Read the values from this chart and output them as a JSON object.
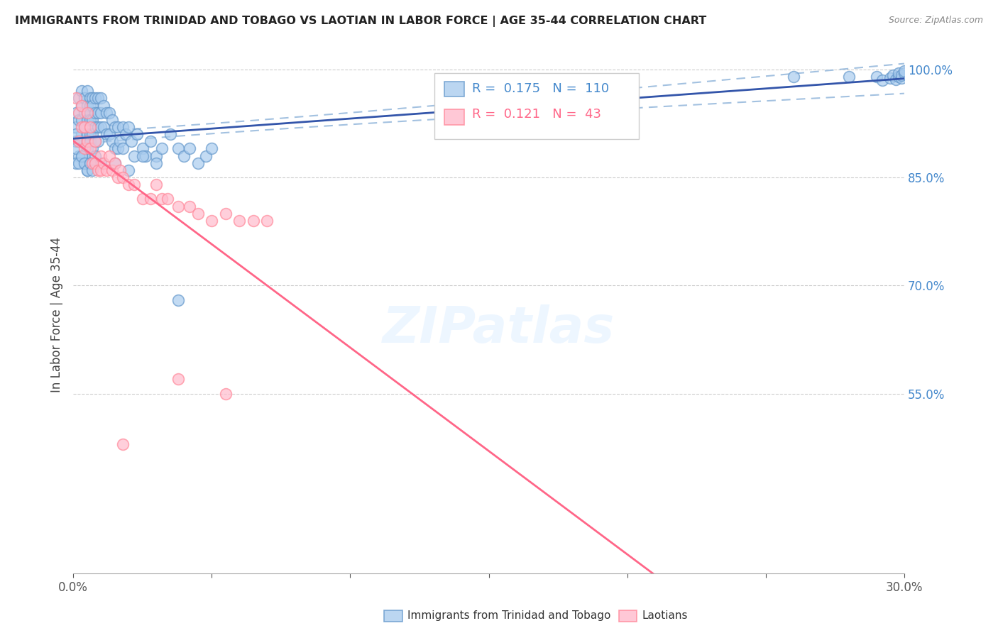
{
  "title": "IMMIGRANTS FROM TRINIDAD AND TOBAGO VS LAOTIAN IN LABOR FORCE | AGE 35-44 CORRELATION CHART",
  "source": "Source: ZipAtlas.com",
  "ylabel": "In Labor Force | Age 35-44",
  "xlim": [
    0.0,
    0.3
  ],
  "ylim": [
    0.3,
    1.02
  ],
  "yticks_right": [
    1.0,
    0.85,
    0.7,
    0.55
  ],
  "yticklabels_right": [
    "100.0%",
    "85.0%",
    "70.0%",
    "55.0%"
  ],
  "blue_R": 0.175,
  "blue_N": 110,
  "pink_R": 0.121,
  "pink_N": 43,
  "blue_color": "#6699CC",
  "pink_color": "#FF88AA",
  "blue_line_color": "#3355AA",
  "pink_line_color": "#FF6688",
  "blue_dashed_color": "#99BBDD",
  "legend_blue_label": "Immigrants from Trinidad and Tobago",
  "legend_pink_label": "Laotians",
  "blue_x": [
    0.001,
    0.001,
    0.002,
    0.002,
    0.002,
    0.003,
    0.003,
    0.003,
    0.003,
    0.004,
    0.004,
    0.004,
    0.004,
    0.004,
    0.005,
    0.005,
    0.005,
    0.005,
    0.005,
    0.005,
    0.005,
    0.006,
    0.006,
    0.006,
    0.006,
    0.006,
    0.006,
    0.007,
    0.007,
    0.007,
    0.007,
    0.007,
    0.008,
    0.008,
    0.008,
    0.008,
    0.009,
    0.009,
    0.009,
    0.009,
    0.01,
    0.01,
    0.01,
    0.011,
    0.011,
    0.012,
    0.012,
    0.013,
    0.013,
    0.014,
    0.014,
    0.015,
    0.015,
    0.016,
    0.016,
    0.017,
    0.018,
    0.018,
    0.019,
    0.02,
    0.021,
    0.022,
    0.023,
    0.025,
    0.026,
    0.028,
    0.03,
    0.032,
    0.035,
    0.038,
    0.04,
    0.042,
    0.045,
    0.048,
    0.05,
    0.038,
    0.025,
    0.03,
    0.02,
    0.015,
    0.01,
    0.008,
    0.006,
    0.005,
    0.004,
    0.003,
    0.002,
    0.001,
    0.001,
    0.001,
    0.001,
    0.002,
    0.003,
    0.004,
    0.005,
    0.006,
    0.007,
    0.26,
    0.28,
    0.29,
    0.292,
    0.295,
    0.296,
    0.297,
    0.298,
    0.298,
    0.299,
    0.299,
    0.3,
    0.3
  ],
  "blue_y": [
    0.94,
    0.92,
    0.96,
    0.93,
    0.9,
    0.97,
    0.95,
    0.93,
    0.91,
    0.96,
    0.94,
    0.92,
    0.9,
    0.88,
    0.97,
    0.95,
    0.94,
    0.93,
    0.91,
    0.9,
    0.89,
    0.96,
    0.95,
    0.94,
    0.93,
    0.91,
    0.9,
    0.96,
    0.95,
    0.93,
    0.91,
    0.89,
    0.96,
    0.94,
    0.92,
    0.9,
    0.96,
    0.94,
    0.92,
    0.9,
    0.96,
    0.94,
    0.92,
    0.95,
    0.92,
    0.94,
    0.91,
    0.94,
    0.91,
    0.93,
    0.9,
    0.92,
    0.89,
    0.92,
    0.89,
    0.9,
    0.92,
    0.89,
    0.91,
    0.92,
    0.9,
    0.88,
    0.91,
    0.89,
    0.88,
    0.9,
    0.88,
    0.89,
    0.91,
    0.89,
    0.88,
    0.89,
    0.87,
    0.88,
    0.89,
    0.68,
    0.88,
    0.87,
    0.86,
    0.87,
    0.87,
    0.88,
    0.87,
    0.86,
    0.87,
    0.88,
    0.88,
    0.9,
    0.89,
    0.91,
    0.87,
    0.87,
    0.88,
    0.87,
    0.86,
    0.87,
    0.86,
    0.99,
    0.99,
    0.99,
    0.985,
    0.988,
    0.992,
    0.986,
    0.99,
    0.995,
    0.988,
    0.992,
    0.995,
    0.998
  ],
  "pink_x": [
    0.001,
    0.002,
    0.002,
    0.003,
    0.003,
    0.004,
    0.004,
    0.005,
    0.005,
    0.006,
    0.006,
    0.007,
    0.008,
    0.008,
    0.009,
    0.01,
    0.01,
    0.011,
    0.012,
    0.013,
    0.014,
    0.015,
    0.016,
    0.017,
    0.018,
    0.02,
    0.022,
    0.025,
    0.028,
    0.03,
    0.032,
    0.034,
    0.038,
    0.042,
    0.045,
    0.05,
    0.055,
    0.06,
    0.065,
    0.07,
    0.018,
    0.038,
    0.055
  ],
  "pink_y": [
    0.96,
    0.94,
    0.9,
    0.95,
    0.92,
    0.92,
    0.89,
    0.94,
    0.9,
    0.92,
    0.89,
    0.87,
    0.9,
    0.87,
    0.86,
    0.88,
    0.86,
    0.87,
    0.86,
    0.88,
    0.86,
    0.87,
    0.85,
    0.86,
    0.85,
    0.84,
    0.84,
    0.82,
    0.82,
    0.84,
    0.82,
    0.82,
    0.81,
    0.81,
    0.8,
    0.79,
    0.8,
    0.79,
    0.79,
    0.79,
    0.48,
    0.57,
    0.55
  ]
}
